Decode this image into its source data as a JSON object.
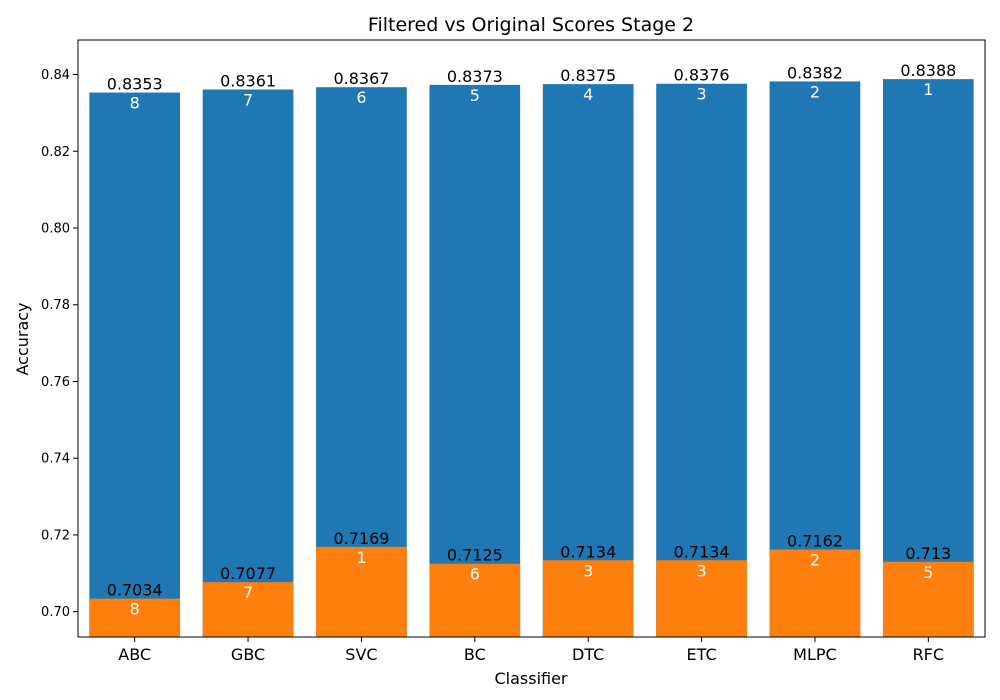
{
  "chart_data": {
    "type": "bar",
    "title": "Filtered vs Original Scores  Stage 2",
    "xlabel": "Classifier",
    "ylabel": "Accuracy",
    "ylim": [
      0.6934,
      0.849
    ],
    "yticks": [
      0.7,
      0.72,
      0.74,
      0.76,
      0.78,
      0.8,
      0.82,
      0.84
    ],
    "ytick_labels": [
      "0.70",
      "0.72",
      "0.74",
      "0.76",
      "0.78",
      "0.80",
      "0.82",
      "0.84"
    ],
    "categories": [
      "ABC",
      "GBC",
      "SVC",
      "BC",
      "DTC",
      "ETC",
      "MLPC",
      "RFC"
    ],
    "colors": {
      "original": "#1f77b4",
      "filtered": "#ff7f0e"
    },
    "series": [
      {
        "name": "Original",
        "values": [
          0.8353,
          0.8361,
          0.8367,
          0.8373,
          0.8375,
          0.8376,
          0.8382,
          0.8388
        ],
        "value_labels": [
          "0.8353",
          "0.8361",
          "0.8367",
          "0.8373",
          "0.8375",
          "0.8376",
          "0.8382",
          "0.8388"
        ],
        "ranks": [
          "8",
          "7",
          "6",
          "5",
          "4",
          "3",
          "2",
          "1"
        ]
      },
      {
        "name": "Filtered",
        "values": [
          0.7034,
          0.7077,
          0.7169,
          0.7125,
          0.7134,
          0.7134,
          0.7162,
          0.713
        ],
        "value_labels": [
          "0.7034",
          "0.7077",
          "0.7169",
          "0.7125",
          "0.7134",
          "0.7134",
          "0.7162",
          "0.713"
        ],
        "ranks": [
          "8",
          "7",
          "1",
          "6",
          "3",
          "3",
          "2",
          "5"
        ]
      }
    ]
  }
}
